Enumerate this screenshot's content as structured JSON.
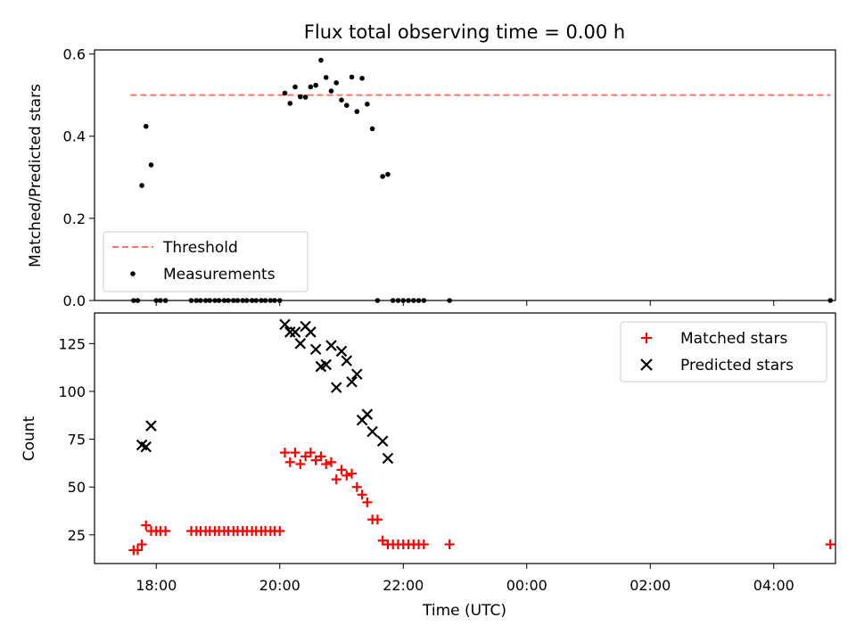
{
  "title": "Flux total observing time = 0.00 h",
  "colors": {
    "threshold": "#ff7070",
    "measurements": "#000000",
    "matched": "#ff0000",
    "predicted": "#000000"
  },
  "chart_data": [
    {
      "type": "scatter",
      "panel": "top",
      "ylabel": "Matched/Predicted stars",
      "xlabel": "",
      "xlim": [
        "17:00",
        "05:00"
      ],
      "ylim": [
        0,
        0.61
      ],
      "yticks": [
        0,
        0.2,
        0.4,
        0.6
      ],
      "ytick_labels": [
        "0.0",
        "0.2",
        "0.4",
        "0.6"
      ],
      "xticks": [
        "18:00",
        "20:00",
        "22:00",
        "00:00",
        "02:00",
        "04:00"
      ],
      "legend": {
        "placement": "lower-left",
        "threshold_label": "Threshold",
        "measurements_label": "Measurements"
      },
      "threshold": {
        "value": 0.5,
        "x_start": "17:35",
        "x_end": "04:55"
      },
      "series": [
        {
          "name": "Measurements",
          "points": [
            [
              "17:38",
              0
            ],
            [
              "17:42",
              0
            ],
            [
              "17:46",
              0.28
            ],
            [
              "17:50",
              0.424
            ],
            [
              "17:55",
              0.33
            ],
            [
              "18:00",
              0
            ],
            [
              "18:04",
              0
            ],
            [
              "18:09",
              0
            ],
            [
              "18:34",
              0
            ],
            [
              "18:39",
              0
            ],
            [
              "18:43",
              0
            ],
            [
              "18:48",
              0
            ],
            [
              "18:52",
              0
            ],
            [
              "18:57",
              0
            ],
            [
              "19:01",
              0
            ],
            [
              "19:06",
              0
            ],
            [
              "19:10",
              0
            ],
            [
              "19:15",
              0
            ],
            [
              "19:19",
              0
            ],
            [
              "19:24",
              0
            ],
            [
              "19:28",
              0
            ],
            [
              "19:33",
              0
            ],
            [
              "19:37",
              0
            ],
            [
              "19:42",
              0
            ],
            [
              "19:46",
              0
            ],
            [
              "19:51",
              0
            ],
            [
              "19:55",
              0
            ],
            [
              "20:00",
              0
            ],
            [
              "20:05",
              0.505
            ],
            [
              "20:10",
              0.48
            ],
            [
              "20:15",
              0.52
            ],
            [
              "20:20",
              0.496
            ],
            [
              "20:25",
              0.495
            ],
            [
              "20:30",
              0.52
            ],
            [
              "20:35",
              0.524
            ],
            [
              "20:40",
              0.585
            ],
            [
              "20:45",
              0.543
            ],
            [
              "20:50",
              0.51
            ],
            [
              "20:55",
              0.53
            ],
            [
              "21:00",
              0.488
            ],
            [
              "21:05",
              0.475
            ],
            [
              "21:10",
              0.544
            ],
            [
              "21:15",
              0.46
            ],
            [
              "21:20",
              0.541
            ],
            [
              "21:25",
              0.478
            ],
            [
              "21:30",
              0.418
            ],
            [
              "21:35",
              0
            ],
            [
              "21:40",
              0.302
            ],
            [
              "21:45",
              0.307
            ],
            [
              "21:50",
              0
            ],
            [
              "21:55",
              0
            ],
            [
              "22:00",
              0
            ],
            [
              "22:05",
              0
            ],
            [
              "22:10",
              0
            ],
            [
              "22:15",
              0
            ],
            [
              "22:20",
              0
            ],
            [
              "22:45",
              0
            ],
            [
              "04:55",
              0
            ]
          ]
        }
      ]
    },
    {
      "type": "scatter",
      "panel": "bottom",
      "ylabel": "Count",
      "xlabel": "Time (UTC)",
      "xlim": [
        "17:00",
        "05:00"
      ],
      "ylim": [
        10,
        141
      ],
      "yticks": [
        25,
        50,
        75,
        100,
        125
      ],
      "xticks": [
        "18:00",
        "20:00",
        "22:00",
        "00:00",
        "02:00",
        "04:00"
      ],
      "legend": {
        "placement": "top-right"
      },
      "series": [
        {
          "name": "Matched stars",
          "marker": "plus",
          "points": [
            [
              "17:38",
              17
            ],
            [
              "17:42",
              17
            ],
            [
              "17:46",
              20
            ],
            [
              "17:50",
              30
            ],
            [
              "17:55",
              27
            ],
            [
              "18:00",
              27
            ],
            [
              "18:04",
              27
            ],
            [
              "18:09",
              27
            ],
            [
              "18:34",
              27
            ],
            [
              "18:39",
              27
            ],
            [
              "18:43",
              27
            ],
            [
              "18:48",
              27
            ],
            [
              "18:52",
              27
            ],
            [
              "18:57",
              27
            ],
            [
              "19:01",
              27
            ],
            [
              "19:06",
              27
            ],
            [
              "19:10",
              27
            ],
            [
              "19:15",
              27
            ],
            [
              "19:19",
              27
            ],
            [
              "19:24",
              27
            ],
            [
              "19:28",
              27
            ],
            [
              "19:33",
              27
            ],
            [
              "19:37",
              27
            ],
            [
              "19:42",
              27
            ],
            [
              "19:46",
              27
            ],
            [
              "19:51",
              27
            ],
            [
              "19:55",
              27
            ],
            [
              "20:00",
              27
            ],
            [
              "20:05",
              68
            ],
            [
              "20:10",
              63
            ],
            [
              "20:15",
              68
            ],
            [
              "20:20",
              62
            ],
            [
              "20:25",
              66
            ],
            [
              "20:30",
              68
            ],
            [
              "20:35",
              64
            ],
            [
              "20:40",
              66
            ],
            [
              "20:45",
              62
            ],
            [
              "20:50",
              63
            ],
            [
              "20:55",
              54
            ],
            [
              "21:00",
              59
            ],
            [
              "21:05",
              56
            ],
            [
              "21:10",
              57
            ],
            [
              "21:15",
              50
            ],
            [
              "21:20",
              46
            ],
            [
              "21:25",
              42
            ],
            [
              "21:30",
              33
            ],
            [
              "21:35",
              33
            ],
            [
              "21:40",
              22
            ],
            [
              "21:45",
              20
            ],
            [
              "21:50",
              20
            ],
            [
              "21:55",
              20
            ],
            [
              "22:00",
              20
            ],
            [
              "22:05",
              20
            ],
            [
              "22:10",
              20
            ],
            [
              "22:15",
              20
            ],
            [
              "22:20",
              20
            ],
            [
              "22:45",
              20
            ],
            [
              "04:55",
              20
            ]
          ]
        },
        {
          "name": "Predicted stars",
          "marker": "x",
          "points": [
            [
              "17:46",
              72
            ],
            [
              "17:50",
              71
            ],
            [
              "17:55",
              82
            ],
            [
              "20:05",
              135
            ],
            [
              "20:10",
              131
            ],
            [
              "20:15",
              131
            ],
            [
              "20:20",
              125
            ],
            [
              "20:25",
              134
            ],
            [
              "20:30",
              131
            ],
            [
              "20:35",
              122
            ],
            [
              "20:40",
              113
            ],
            [
              "20:45",
              114
            ],
            [
              "20:50",
              124
            ],
            [
              "20:55",
              102
            ],
            [
              "21:00",
              121
            ],
            [
              "21:05",
              116
            ],
            [
              "21:10",
              105
            ],
            [
              "21:15",
              109
            ],
            [
              "21:20",
              85
            ],
            [
              "21:25",
              88
            ],
            [
              "21:30",
              79
            ],
            [
              "21:40",
              74
            ],
            [
              "21:45",
              65
            ]
          ]
        }
      ]
    }
  ]
}
